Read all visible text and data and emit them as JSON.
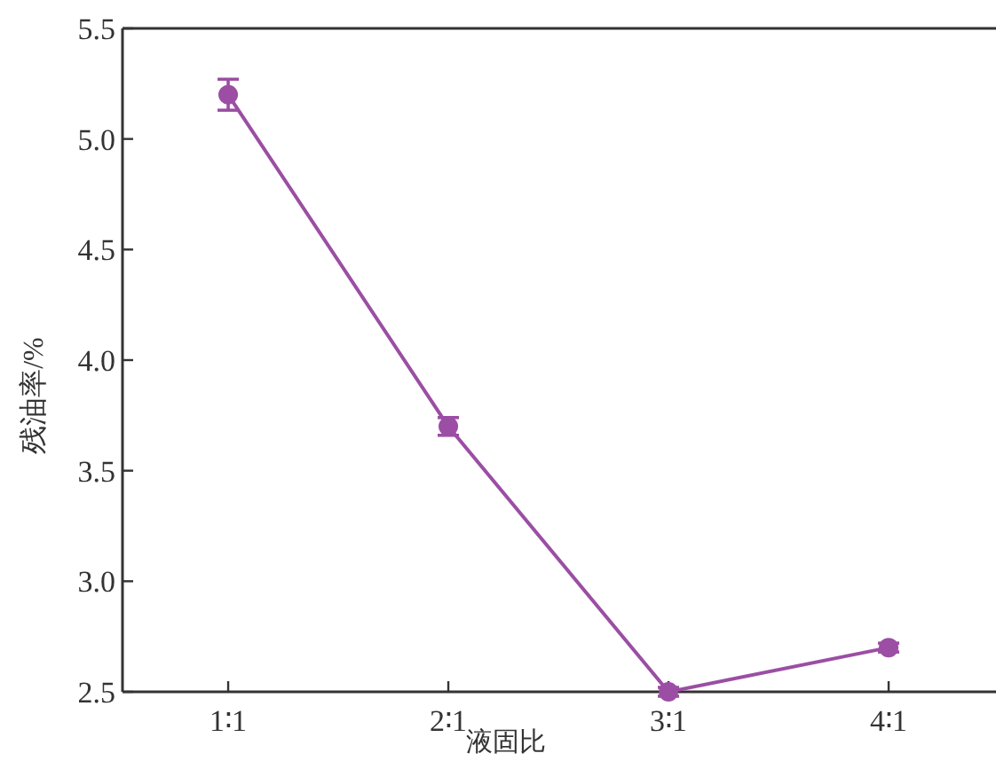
{
  "chart_data": {
    "type": "line",
    "xlabel": "液固比",
    "ylabel": "残油率/%",
    "categories": [
      "1∶1",
      "2∶1",
      "3∶1",
      "4∶1"
    ],
    "series": [
      {
        "color": "#9b4ea3",
        "values": [
          5.2,
          3.7,
          2.5,
          2.7
        ],
        "errors": [
          0.07,
          0.04,
          0.02,
          0.02
        ]
      }
    ],
    "ylim": [
      2.5,
      5.5
    ],
    "yticks": [
      {
        "value": 2.5,
        "label": "2.5"
      },
      {
        "value": 3,
        "label": "3.0"
      },
      {
        "value": 3.5,
        "label": "3.5"
      },
      {
        "value": 4,
        "label": "4.0"
      },
      {
        "value": 4.5,
        "label": "4.5"
      },
      {
        "value": 5,
        "label": "5.0"
      },
      {
        "value": 5.5,
        "label": "5.5"
      }
    ],
    "grid": false,
    "marker": "circle",
    "line_style": "solid"
  }
}
